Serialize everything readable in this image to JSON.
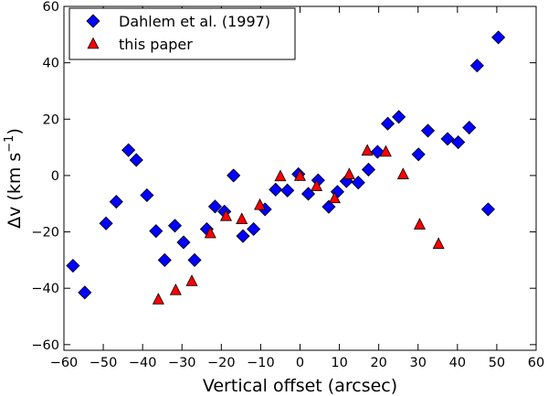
{
  "chart_data": {
    "type": "scatter",
    "title": "",
    "xlabel": "Vertical offset (arcsec)",
    "ylabel": {
      "main": "Δv (km s",
      "sup": "−1",
      "close": ")"
    },
    "xlim": [
      -60,
      60
    ],
    "ylim": [
      -62,
      60
    ],
    "xticks": [
      -60,
      -50,
      -40,
      -30,
      -20,
      -10,
      0,
      10,
      20,
      30,
      40,
      50,
      60
    ],
    "yticks": [
      -60,
      -40,
      -20,
      0,
      20,
      40,
      60
    ],
    "tick_labels": {
      "x": [
        "−60",
        "−50",
        "−40",
        "−30",
        "−20",
        "−10",
        "0",
        "10",
        "20",
        "30",
        "40",
        "50",
        "60"
      ],
      "y": [
        "−60",
        "−40",
        "−20",
        "0",
        "20",
        "40",
        "60"
      ]
    },
    "grid": false,
    "legend_position": "top-left",
    "series": [
      {
        "name": "Dahlem et al. (1997)",
        "marker": "diamond",
        "color": "#0000ff",
        "points": [
          [
            -57.7,
            -32
          ],
          [
            -54.7,
            -41.5
          ],
          [
            -49.3,
            -17
          ],
          [
            -46.7,
            -9.3
          ],
          [
            -43.6,
            9
          ],
          [
            -41.6,
            5.5
          ],
          [
            -38.9,
            -7
          ],
          [
            -36.6,
            -19.7
          ],
          [
            -34.4,
            -30
          ],
          [
            -31.8,
            -17.8
          ],
          [
            -29.6,
            -23.7
          ],
          [
            -26.8,
            -30
          ],
          [
            -23.7,
            -19
          ],
          [
            -21.6,
            -11
          ],
          [
            -19.2,
            -12.8
          ],
          [
            -16.9,
            0
          ],
          [
            -14.5,
            -21.5
          ],
          [
            -11.8,
            -19
          ],
          [
            -8.9,
            -12
          ],
          [
            -6.2,
            -5
          ],
          [
            -3.2,
            -5.3
          ],
          [
            -0.4,
            0.5
          ],
          [
            2.1,
            -6.5
          ],
          [
            4.6,
            -1.7
          ],
          [
            7.3,
            -11.1
          ],
          [
            9.5,
            -5.8
          ],
          [
            11.8,
            -2
          ],
          [
            14.8,
            -2.5
          ],
          [
            17.4,
            2.1
          ],
          [
            19.7,
            8.4
          ],
          [
            22.3,
            18.4
          ],
          [
            25.1,
            20.8
          ],
          [
            30.1,
            7.5
          ],
          [
            32.5,
            15.9
          ],
          [
            37.5,
            13
          ],
          [
            40.2,
            11.8
          ],
          [
            43,
            17
          ],
          [
            45,
            39
          ],
          [
            47.8,
            -12
          ],
          [
            50.4,
            49
          ]
        ]
      },
      {
        "name": "this paper",
        "marker": "triangle",
        "color": "#ff0000",
        "points": [
          [
            -36,
            -44
          ],
          [
            -31.6,
            -40.7
          ],
          [
            -27.5,
            -37.5
          ],
          [
            -22.8,
            -20.5
          ],
          [
            -18.8,
            -14.4
          ],
          [
            -14.8,
            -15.5
          ],
          [
            -10.2,
            -10.5
          ],
          [
            -5,
            -0.3
          ],
          [
            0,
            -0.2
          ],
          [
            4.2,
            -3.8
          ],
          [
            8.8,
            -8.1
          ],
          [
            12.5,
            0.4
          ],
          [
            17.1,
            8.8
          ],
          [
            21.8,
            8.4
          ],
          [
            26.2,
            0.4
          ],
          [
            30.4,
            -17.4
          ],
          [
            35.2,
            -24.3
          ]
        ]
      }
    ]
  }
}
